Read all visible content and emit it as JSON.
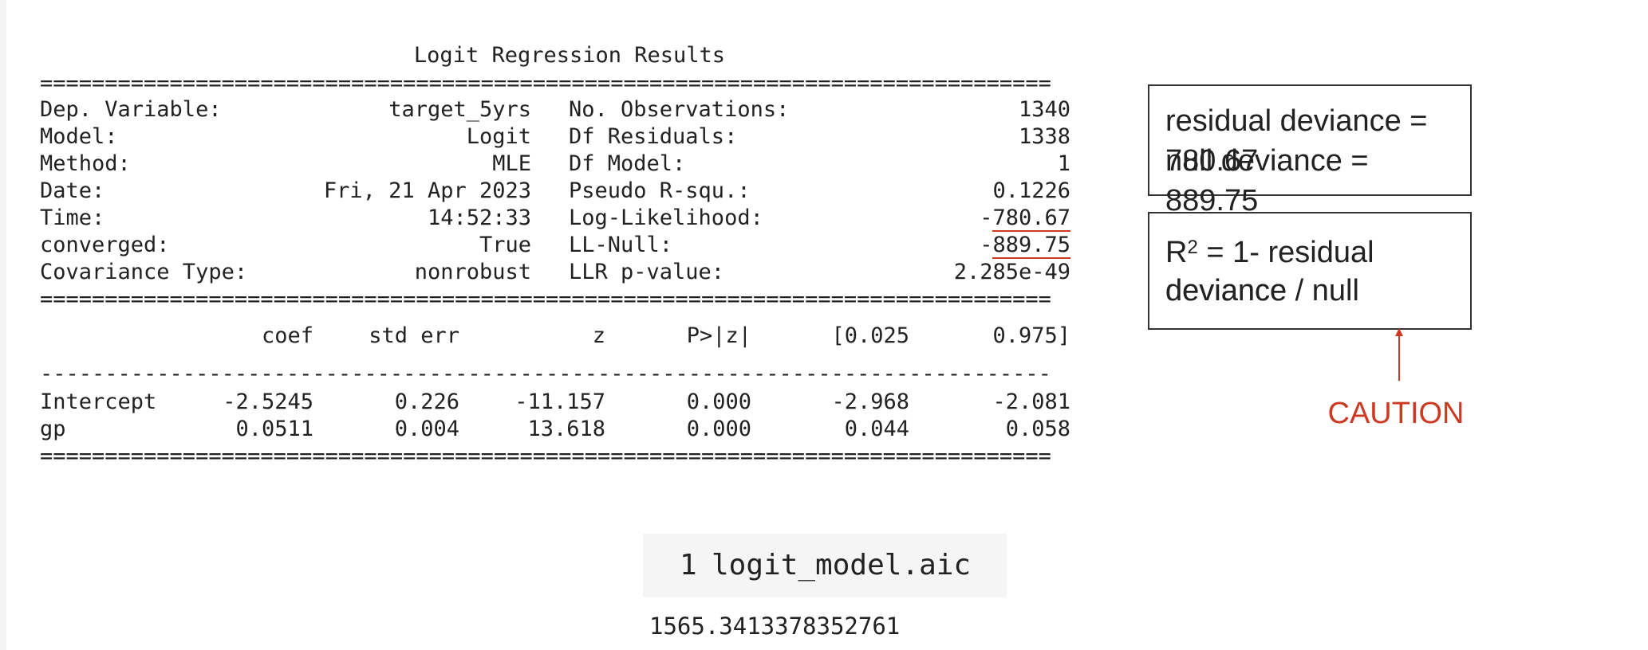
{
  "summary": {
    "title": "Logit Regression Results",
    "rule_eq": "==============================================================================",
    "rule_dash": "------------------------------------------------------------------------------",
    "info_rows": [
      {
        "label": "Dep. Variable:",
        "value": "target_5yrs",
        "label2": "No. Observations:",
        "value2": "1340"
      },
      {
        "label": "Model:",
        "value": "Logit",
        "label2": "Df Residuals:",
        "value2": "1338"
      },
      {
        "label": "Method:",
        "value": "MLE",
        "label2": "Df Model:",
        "value2": "1"
      },
      {
        "label": "Date:",
        "value": "Fri, 21 Apr 2023",
        "label2": "Pseudo R-squ.:",
        "value2": "0.1226"
      },
      {
        "label": "Time:",
        "value": "14:52:33",
        "label2": "Log-Likelihood:",
        "value2_sign": "-",
        "value2_num": "780.67"
      },
      {
        "label": "converged:",
        "value": "True",
        "label2": "LL-Null:",
        "value2_sign": "-",
        "value2_num": "889.75"
      },
      {
        "label": "Covariance Type:",
        "value": "nonrobust",
        "label2": "LLR p-value:",
        "value2": "2.285e-49"
      }
    ],
    "coef_header": [
      "",
      "coef",
      "std err",
      "z",
      "P>|z|",
      "[0.025",
      "0.975]"
    ],
    "coef_rows": [
      [
        "Intercept",
        "-2.5245",
        "0.226",
        "-11.157",
        "0.000",
        "-2.968",
        "-2.081"
      ],
      [
        "gp",
        "0.0511",
        "0.004",
        "13.618",
        "0.000",
        "0.044",
        "0.058"
      ]
    ]
  },
  "annotations": {
    "box1_line1": "residual deviance  = 780.67",
    "box1_line2": "null deviance = 889.75",
    "box2_r": "R",
    "box2_sup": "2",
    "box2_line1_rest": " = 1- residual deviance / null",
    "box2_line2": "deviance",
    "caution": "CAUTION",
    "accent_color": "#cc3a22"
  },
  "cell": {
    "prompt": "1",
    "code": "logit_model.aic",
    "output": "1565.3413378352761"
  }
}
